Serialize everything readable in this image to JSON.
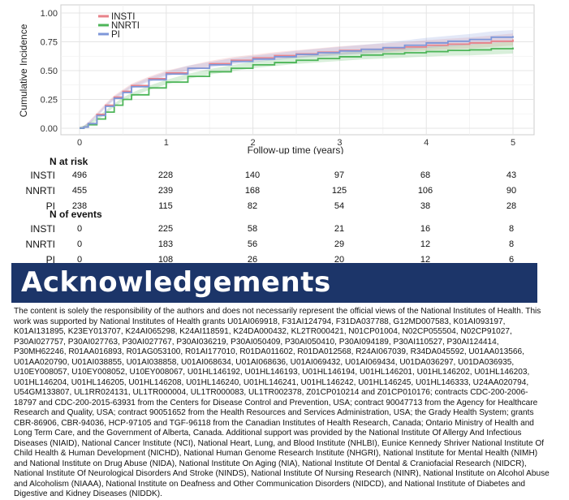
{
  "chart_data": {
    "type": "line",
    "ylabel": "Cumulative Incidence",
    "xlabel": "Follow-up time (years)",
    "xlim": [
      0,
      5
    ],
    "ylim": [
      0,
      1
    ],
    "x_ticks": [
      "0",
      "1",
      "2",
      "3",
      "4",
      "5"
    ],
    "y_ticks": [
      "0.00",
      "0.25",
      "0.50",
      "0.75",
      "1.00"
    ],
    "grid": true,
    "legend_position": "top-left",
    "series": [
      {
        "name": "INSTI",
        "color": "#e8828a",
        "x": [
          0,
          0.05,
          0.1,
          0.2,
          0.3,
          0.4,
          0.5,
          0.6,
          0.8,
          1.0,
          1.25,
          1.5,
          1.75,
          2.0,
          2.25,
          2.5,
          2.75,
          3.0,
          3.25,
          3.5,
          3.75,
          4.0,
          4.25,
          4.5,
          4.75,
          5.0
        ],
        "values": [
          0,
          0.01,
          0.04,
          0.12,
          0.2,
          0.27,
          0.32,
          0.37,
          0.43,
          0.48,
          0.52,
          0.56,
          0.59,
          0.61,
          0.63,
          0.645,
          0.66,
          0.675,
          0.685,
          0.695,
          0.705,
          0.72,
          0.73,
          0.74,
          0.755,
          0.77
        ]
      },
      {
        "name": "NNRTI",
        "color": "#4db558",
        "x": [
          0,
          0.05,
          0.1,
          0.2,
          0.3,
          0.4,
          0.5,
          0.6,
          0.8,
          1.0,
          1.25,
          1.5,
          1.75,
          2.0,
          2.25,
          2.5,
          2.75,
          3.0,
          3.25,
          3.5,
          3.75,
          4.0,
          4.25,
          4.5,
          4.75,
          5.0
        ],
        "values": [
          0,
          0.01,
          0.03,
          0.08,
          0.14,
          0.2,
          0.25,
          0.29,
          0.35,
          0.4,
          0.45,
          0.49,
          0.52,
          0.55,
          0.57,
          0.59,
          0.605,
          0.62,
          0.635,
          0.645,
          0.655,
          0.665,
          0.675,
          0.68,
          0.69,
          0.7
        ]
      },
      {
        "name": "PI",
        "color": "#7e97d9",
        "x": [
          0,
          0.05,
          0.1,
          0.2,
          0.3,
          0.4,
          0.5,
          0.6,
          0.8,
          1.0,
          1.25,
          1.5,
          1.75,
          2.0,
          2.25,
          2.5,
          2.75,
          3.0,
          3.25,
          3.5,
          3.75,
          4.0,
          4.25,
          4.5,
          4.75,
          5.0
        ],
        "values": [
          0,
          0.01,
          0.04,
          0.11,
          0.19,
          0.26,
          0.31,
          0.36,
          0.42,
          0.47,
          0.52,
          0.55,
          0.58,
          0.6,
          0.62,
          0.64,
          0.655,
          0.67,
          0.685,
          0.7,
          0.72,
          0.74,
          0.755,
          0.77,
          0.79,
          0.8
        ]
      }
    ]
  },
  "risk_table": {
    "at_risk_heading": "N at risk",
    "events_heading": "N of events",
    "time_points": [
      "0",
      "1",
      "2",
      "3",
      "4",
      "5"
    ],
    "at_risk": [
      {
        "group": "INSTI",
        "values": [
          "496",
          "228",
          "140",
          "97",
          "68",
          "43"
        ]
      },
      {
        "group": "NNRTI",
        "values": [
          "455",
          "239",
          "168",
          "125",
          "106",
          "90"
        ]
      },
      {
        "group": "PI",
        "values": [
          "238",
          "115",
          "82",
          "54",
          "38",
          "28"
        ]
      }
    ],
    "events": [
      {
        "group": "INSTI",
        "values": [
          "0",
          "225",
          "58",
          "21",
          "16",
          "8"
        ]
      },
      {
        "group": "NNRTI",
        "values": [
          "0",
          "183",
          "56",
          "29",
          "12",
          "8"
        ]
      },
      {
        "group": "PI",
        "values": [
          "0",
          "108",
          "26",
          "20",
          "12",
          "6"
        ]
      }
    ]
  },
  "acknowledgements": {
    "title": "Acknowledgements",
    "body": "The content is solely the responsibility of the authors and does not necessarily represent the official views of the National Institutes of Health. This work was supported by National Institutes of Health grants U01AI069918, F31AI124794, F31DA037788, G12MD007583, K01AI093197, K01AI131895, K23EY013707, K24AI065298, K24AI118591, K24DA000432, KL2TR000421, N01CP01004, N02CP055504, N02CP91027, P30AI027757, P30AI027763, P30AI027767, P30AI036219, P30AI050409, P30AI050410, P30AI094189, P30AI110527, P30AI124414, P30MH62246, R01AA016893, R01AG053100, R01AI177010, R01DA011602, R01DA012568, R24AI067039, R34DA045592, U01AA013566, U01AA020790, U01AI038855, U01AI038858, U01AI068634, U01AI068636, U01AI069432, U01AI069434, U01DA036297, U01DA036935, U10EY008057, U10EY008052, U10EY008067, U01HL146192, U01HL146193, U01HL146194, U01HL146201, U01HL146202, U01HL146203, U01HL146204, U01HL146205, U01HL146208, U01HL146240, U01HL146241, U01HL146242, U01HL146245, U01HL146333, U24AA020794, U54GM133807, UL1RR024131, UL1TR000004, UL1TR000083, UL1TR002378, Z01CP010214 and Z01CP010176; contracts CDC-200-2006-18797 and CDC-200-2015-63931 from the Centers for Disease Control and Prevention, USA; contract 90047713 from the Agency for Healthcare Research and Quality, USA; contract 90051652 from the Health Resources and Services Administration, USA; the Grady Health System; grants CBR-86906, CBR-94036, HCP-97105 and TGF-96118 from the Canadian Institutes of Health Research, Canada; Ontario Ministry of Health and Long Term Care, and the Government of Alberta, Canada. Additional support was provided by the National Institute Of Allergy And Infectious Diseases (NIAID), National Cancer Institute (NCI), National Heart, Lung, and Blood Institute (NHLBI), Eunice Kennedy Shriver National Institute Of Child Health & Human Development (NICHD), National Human Genome Research Institute (NHGRI), National Institute for Mental Health (NIMH) and National Institute on Drug Abuse (NIDA), National Institute On Aging (NIA), National Institute Of Dental & Craniofacial Research (NIDCR), National Institute Of Neurological Disorders And Stroke (NINDS), National Institute Of Nursing Research (NINR), National Institute on Alcohol Abuse and Alcoholism (NIAAA), National Institute on Deafness and Other Communication Disorders (NIDCD), and National Institute of Diabetes and Digestive and Kidney Diseases (NIDDK).",
    "banner_color": "#1c3569"
  }
}
